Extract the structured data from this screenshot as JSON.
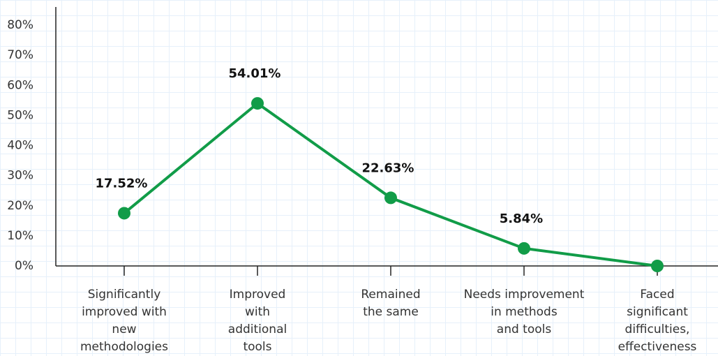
{
  "chart_data": {
    "type": "line",
    "categories": [
      "Significantly\nimproved with\nnew\nmethodologies",
      "Improved\nwith\nadditional\ntools",
      "Remained\nthe same",
      "Needs improvement\nin methods\nand tools",
      "Faced\nsignificant\ndifficulties,\neffectiveness"
    ],
    "series": [
      {
        "color": "#119c48",
        "values": [
          17.52,
          54.01,
          22.63,
          5.84,
          0
        ],
        "value_labels": [
          "17.52%",
          "54.01%",
          "22.63%",
          "5.84%",
          null
        ]
      }
    ],
    "ylim": [
      0,
      80
    ],
    "yticks": [
      {
        "value": 0,
        "label": "0%"
      },
      {
        "value": 10,
        "label": "10%"
      },
      {
        "value": 20,
        "label": "20%"
      },
      {
        "value": 30,
        "label": "30%"
      },
      {
        "value": 40,
        "label": "40%"
      },
      {
        "value": 50,
        "label": "50%"
      },
      {
        "value": 60,
        "label": "60%"
      },
      {
        "value": 70,
        "label": "70%"
      },
      {
        "value": 80,
        "label": "80%"
      }
    ]
  }
}
